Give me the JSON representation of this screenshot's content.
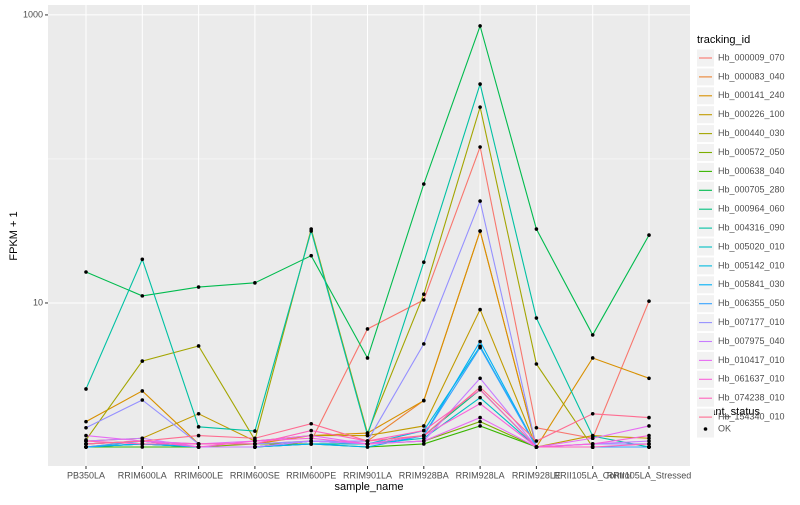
{
  "chart_data": {
    "type": "line",
    "x_label": "sample_name",
    "y_label": "FPKM + 1",
    "log_scale": true,
    "grid": true,
    "categories": [
      "PB350LA",
      "RRIM600LA",
      "RRIM600LE",
      "RRIM600SE",
      "RRIM600PE",
      "RRIM901LA",
      "RRIM928BA",
      "RRIM928LA",
      "RRIM928LE",
      "RRII105LA_Control",
      "RRII105LA_Stressed"
    ],
    "ylim": [
      0.738,
      1172
    ],
    "yticks": [
      10,
      1000
    ],
    "legend_title": "tracking_id",
    "series": [
      {
        "name": "Hb_000009_070",
        "color": "#F8766D",
        "values": [
          1.05,
          1.1,
          1.05,
          1.05,
          1.1,
          6.6,
          10.5,
          121,
          1.36,
          1.15,
          10.3
        ]
      },
      {
        "name": "Hb_000083_040",
        "color": "#EA8331",
        "values": [
          1,
          1.1,
          1,
          1,
          1.1,
          1.1,
          2.1,
          31.6,
          1,
          1,
          1
        ]
      },
      {
        "name": "Hb_000141_240",
        "color": "#D89000",
        "values": [
          1.5,
          2.45,
          1.05,
          1.05,
          1.2,
          1.25,
          2.1,
          31.6,
          1,
          4.15,
          3
        ]
      },
      {
        "name": "Hb_000226_100",
        "color": "#C09B00",
        "values": [
          1.1,
          1.15,
          1.7,
          1.1,
          1.2,
          1.2,
          1.4,
          9,
          1,
          1.2,
          1.15
        ]
      },
      {
        "name": "Hb_000440_030",
        "color": "#A3A500",
        "values": [
          1.12,
          3.95,
          5.03,
          1.12,
          32.6,
          1.25,
          11.5,
          229,
          3.77,
          1,
          1
        ]
      },
      {
        "name": "Hb_000572_050",
        "color": "#7CAE00",
        "values": [
          1,
          1.05,
          1,
          1.05,
          1.05,
          1.05,
          1.1,
          1.5,
          1,
          1,
          1
        ]
      },
      {
        "name": "Hb_000638_040",
        "color": "#39B600",
        "values": [
          1,
          1,
          1,
          1,
          1.05,
          1,
          1.05,
          1.4,
          1,
          1,
          1
        ]
      },
      {
        "name": "Hb_000705_280",
        "color": "#00BB4E",
        "values": [
          16.4,
          11.2,
          12.9,
          13.8,
          21.3,
          4.15,
          67,
          839,
          32.6,
          6,
          29.6
        ]
      },
      {
        "name": "Hb_000964_060",
        "color": "#00BF7D",
        "values": [
          1.05,
          1.1,
          1,
          1,
          1.1,
          1.05,
          1.2,
          2.5,
          1,
          1,
          1
        ]
      },
      {
        "name": "Hb_004316_090",
        "color": "#00C1A3",
        "values": [
          2.53,
          20.1,
          1.38,
          1.29,
          31.6,
          1.21,
          19.2,
          331,
          7.86,
          1.19,
          1
        ]
      },
      {
        "name": "Hb_005020_010",
        "color": "#00BFC4",
        "values": [
          1,
          1.05,
          1,
          1,
          1.05,
          1.05,
          1.15,
          2.2,
          1,
          1,
          1
        ]
      },
      {
        "name": "Hb_005142_010",
        "color": "#00BAE0",
        "values": [
          1,
          1.05,
          1,
          1,
          1.1,
          1.05,
          1.3,
          5,
          1,
          1,
          1
        ]
      },
      {
        "name": "Hb_005841_030",
        "color": "#00B0F6",
        "values": [
          1,
          1.05,
          1,
          1,
          1.05,
          1,
          1.2,
          5.4,
          1,
          1,
          1
        ]
      },
      {
        "name": "Hb_006355_050",
        "color": "#35A2FF",
        "values": [
          1,
          1.1,
          1,
          1,
          1.1,
          1.05,
          1.2,
          4.9,
          1,
          1,
          1
        ]
      },
      {
        "name": "Hb_007177_010",
        "color": "#9590FF",
        "values": [
          1.36,
          2.12,
          1.05,
          1.05,
          1.1,
          1.1,
          5.2,
          51,
          1,
          1.05,
          1.05
        ]
      },
      {
        "name": "Hb_007975_040",
        "color": "#C77CFF",
        "values": [
          1.1,
          1.15,
          1,
          1,
          1.1,
          1.05,
          1.1,
          3,
          1,
          1.05,
          1.1
        ]
      },
      {
        "name": "Hb_010417_010",
        "color": "#E76BF3",
        "values": [
          1.2,
          1.1,
          1.05,
          1.1,
          1.2,
          1.05,
          1.1,
          1.6,
          1,
          1.15,
          1.4
        ]
      },
      {
        "name": "Hb_061637_010",
        "color": "#FA62DB",
        "values": [
          1.05,
          1.1,
          1,
          1.1,
          1.15,
          1.05,
          1.2,
          2,
          1,
          1.05,
          1.2
        ]
      },
      {
        "name": "Hb_074238_010",
        "color": "#FF62BC",
        "values": [
          1.1,
          1.05,
          1.05,
          1.05,
          1.3,
          1.1,
          1.3,
          2.5,
          1,
          1,
          1.05
        ]
      },
      {
        "name": "Hb_154340_010",
        "color": "#FF6C91",
        "values": [
          1.05,
          1.1,
          1.2,
          1.15,
          1.45,
          1.1,
          1.2,
          2.6,
          1.1,
          1.7,
          1.6
        ]
      }
    ],
    "point_legend_title": "quant_status",
    "point_legend_label": "OK",
    "point_color": "#000000"
  }
}
